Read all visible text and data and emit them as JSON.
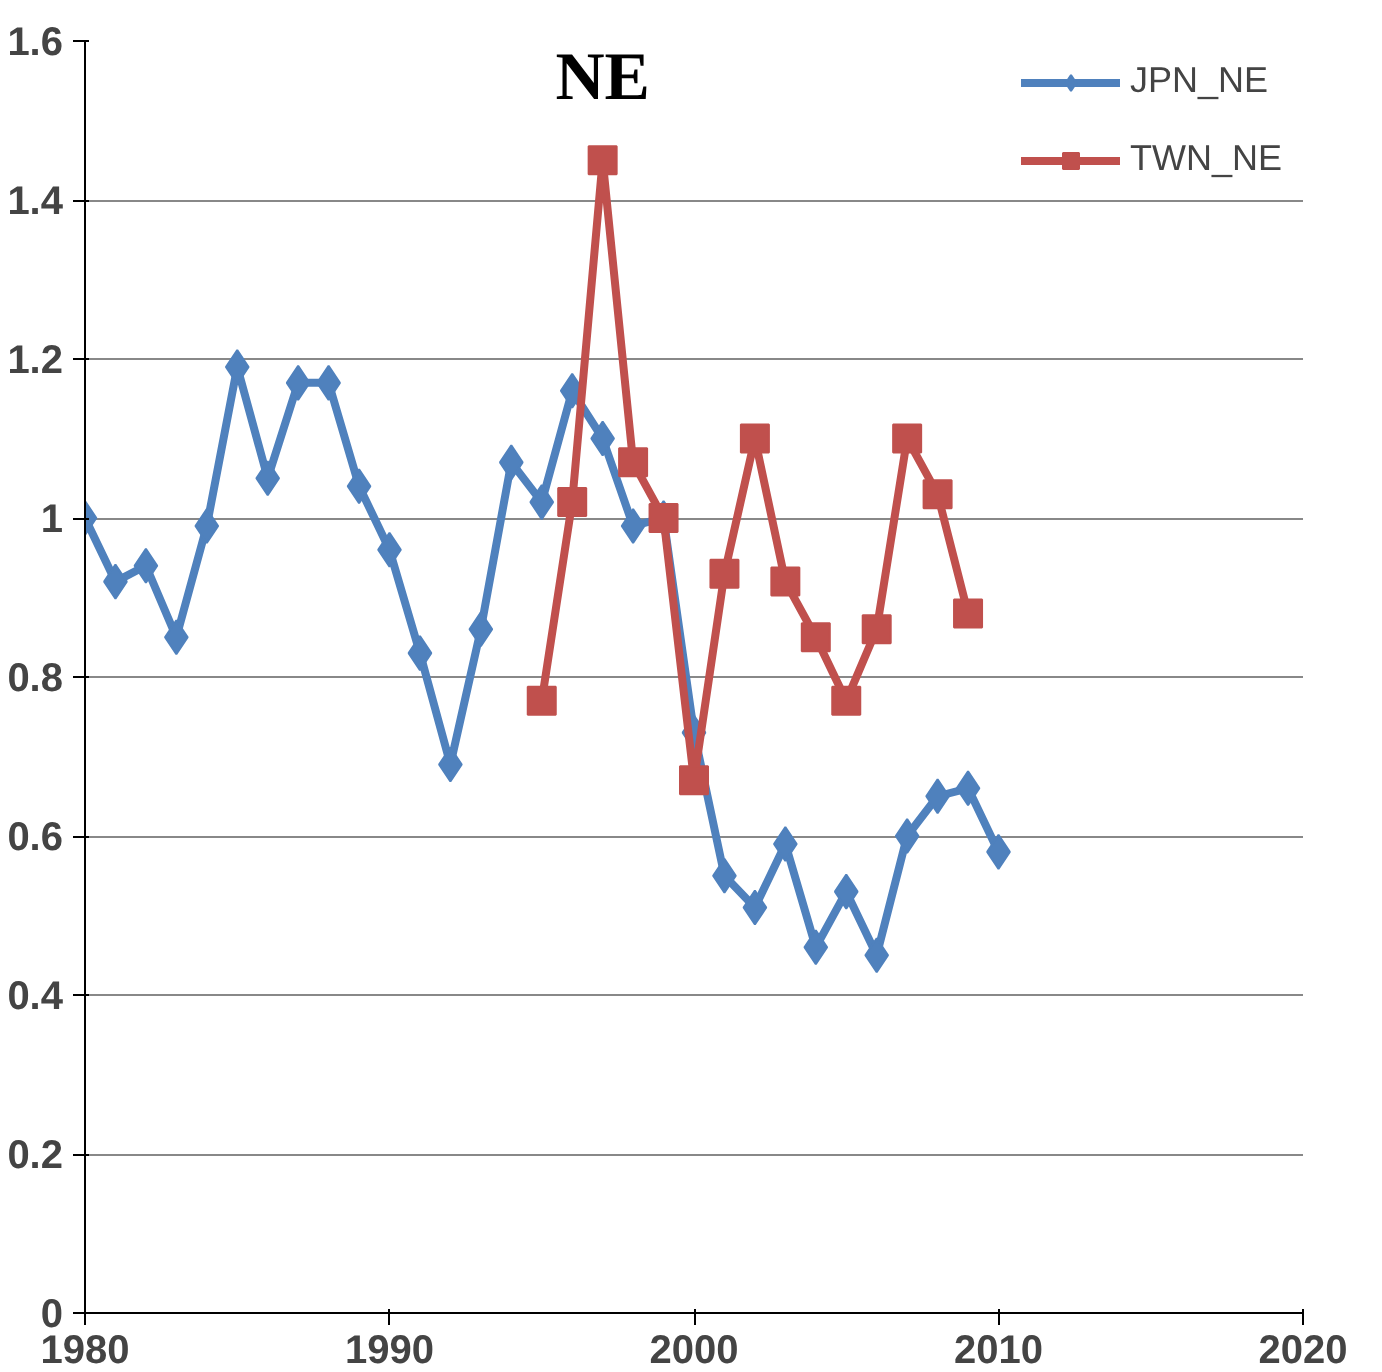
{
  "chart_data": {
    "type": "line",
    "title": "NE",
    "x": [
      1980,
      1981,
      1982,
      1983,
      1984,
      1985,
      1986,
      1987,
      1988,
      1989,
      1990,
      1991,
      1992,
      1993,
      1994,
      1995,
      1996,
      1997,
      1998,
      1999,
      2000,
      2001,
      2002,
      2003,
      2004,
      2005,
      2006,
      2007,
      2008,
      2009,
      2010
    ],
    "series": [
      {
        "name": "JPN_NE",
        "color": "#4f81bd",
        "marker": "diamond",
        "values": [
          1.0,
          0.92,
          0.94,
          0.85,
          0.99,
          1.19,
          1.05,
          1.17,
          1.17,
          1.04,
          0.96,
          0.83,
          0.69,
          0.86,
          1.07,
          1.02,
          1.16,
          1.1,
          0.99,
          1.0,
          0.73,
          0.55,
          0.51,
          0.59,
          0.46,
          0.53,
          0.45,
          0.6,
          0.65,
          0.66,
          0.58
        ]
      },
      {
        "name": "TWN_NE",
        "color": "#c0504d",
        "marker": "square",
        "x": [
          1995,
          1996,
          1997,
          1998,
          1999,
          2000,
          2001,
          2002,
          2003,
          2004,
          2005,
          2006,
          2007,
          2008,
          2009
        ],
        "values": [
          0.77,
          1.02,
          1.45,
          1.07,
          1.0,
          0.67,
          0.93,
          1.1,
          0.92,
          0.85,
          0.77,
          0.86,
          1.1,
          1.03,
          0.88
        ]
      }
    ],
    "xlim": [
      1980,
      2020
    ],
    "xticks": [
      1980,
      1990,
      2000,
      2010,
      2020
    ],
    "ylim": [
      0,
      1.6
    ],
    "yticks": [
      0,
      0.2,
      0.4,
      0.6,
      0.8,
      1,
      1.2,
      1.4,
      1.6
    ],
    "grid": "y",
    "legend": "top right",
    "line_style": "solid"
  }
}
